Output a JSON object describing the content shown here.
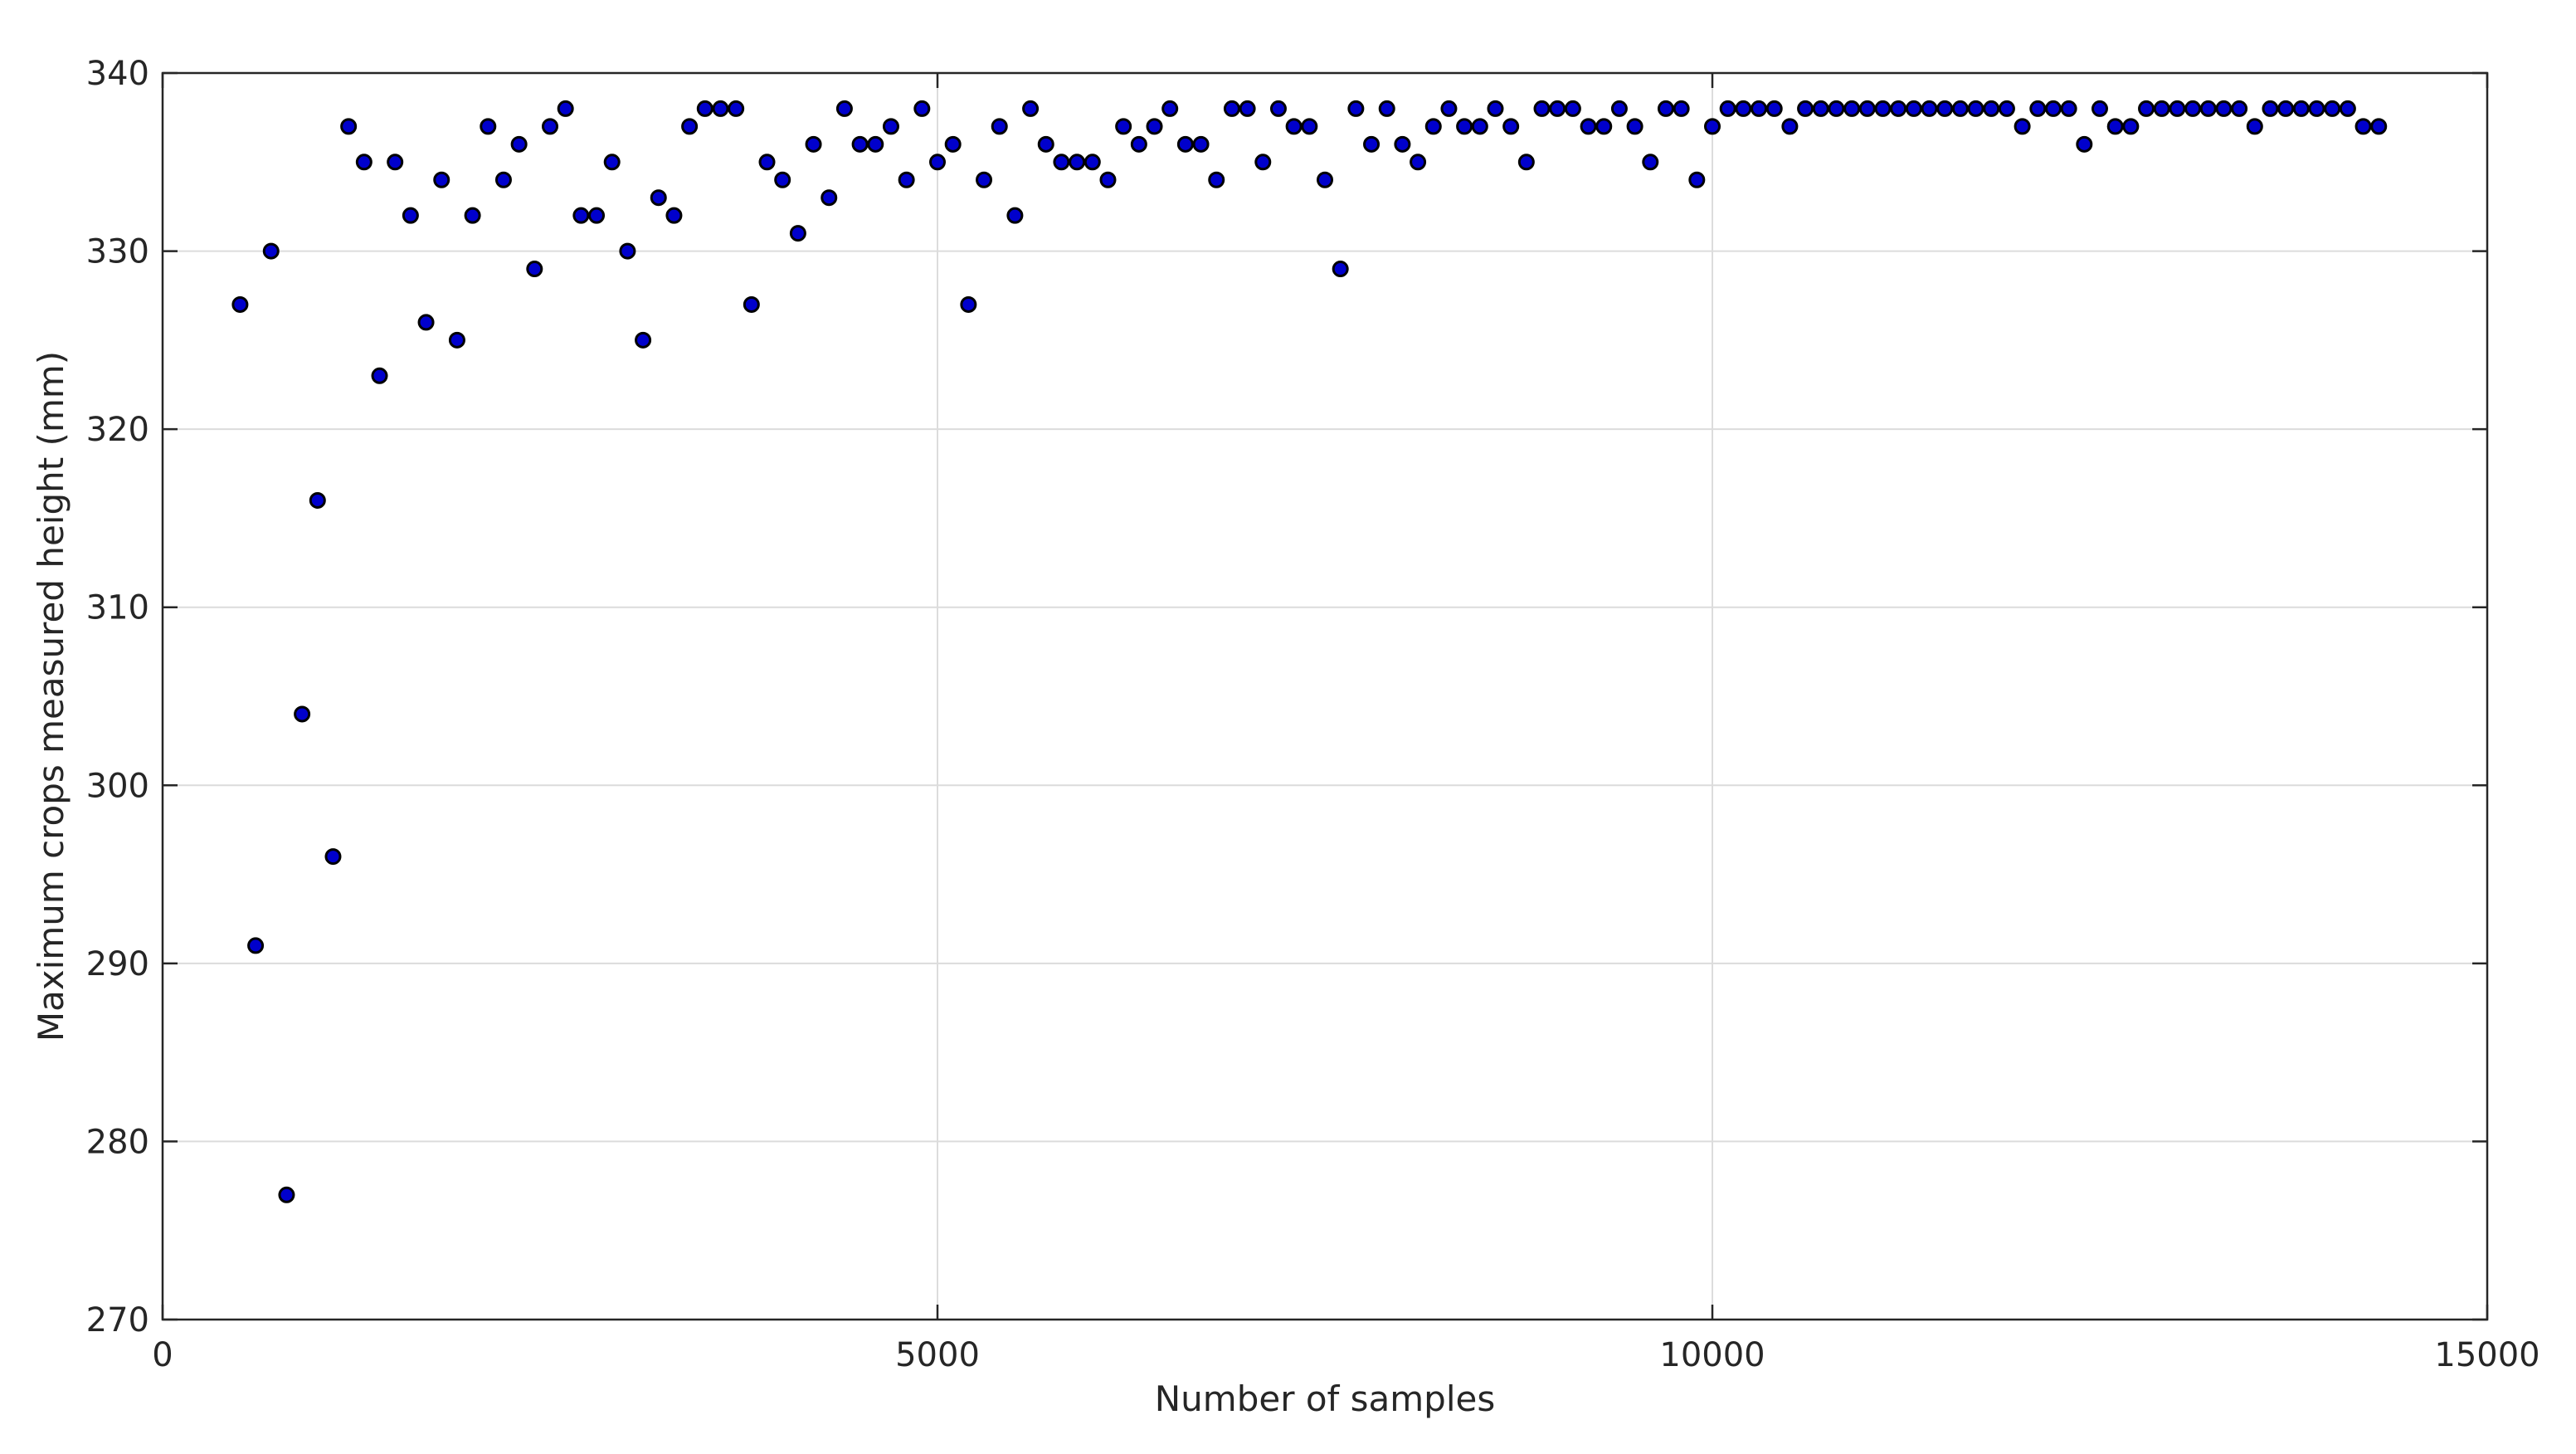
{
  "chart_data": {
    "type": "scatter",
    "title": "",
    "xlabel": "Number of samples",
    "ylabel": "Maximum crops measured height (mm)",
    "xlim": [
      0,
      15000
    ],
    "ylim": [
      270,
      340
    ],
    "xticks": [
      0,
      5000,
      10000,
      15000
    ],
    "xtick_labels": [
      "0",
      "5000",
      "10000",
      "15000"
    ],
    "yticks": [
      270,
      280,
      290,
      300,
      310,
      320,
      330,
      340
    ],
    "ytick_labels": [
      "270",
      "280",
      "290",
      "300",
      "310",
      "320",
      "330",
      "340"
    ],
    "grid": true,
    "marker_color": "#0000cc",
    "marker_edge_color": "#000000",
    "series": [
      {
        "x": [
          500,
          600,
          700,
          800,
          900,
          1000,
          1100,
          1200,
          1300,
          1400,
          1500,
          1600,
          1700,
          1800,
          1900,
          2000,
          2100,
          2200,
          2300,
          2400,
          2500,
          2600,
          2700,
          2800,
          2900,
          3000,
          3100,
          3200,
          3300,
          3400,
          3500,
          3600,
          3700,
          3800,
          3900,
          4000,
          4100,
          4200,
          4300,
          4400,
          4500,
          4600,
          4700,
          4800,
          4900,
          5000,
          5100,
          5200,
          5300,
          5400,
          5500,
          5600,
          5700,
          5800,
          5900,
          6000,
          6100,
          6200,
          6300,
          6400,
          6500,
          6600,
          6700,
          6800,
          6900,
          7000,
          7100,
          7200,
          7300,
          7400,
          7500,
          7600,
          7700,
          7800,
          7900,
          8000,
          8100,
          8200,
          8300,
          8400,
          8500,
          8600,
          8700,
          8800,
          8900,
          9000,
          9100,
          9200,
          9300,
          9400,
          9500,
          9600,
          9700,
          9800,
          9900,
          10000,
          10100,
          10200,
          10300,
          10400,
          10500,
          10600,
          10700,
          10800,
          10900,
          11000,
          11100,
          11200,
          11300,
          11400,
          11500,
          11600,
          11700,
          11800,
          11900,
          12000,
          12100,
          12200,
          12300,
          12400,
          12500,
          12600,
          12700,
          12800,
          12900,
          13000,
          13100,
          13200,
          13300,
          13400,
          13500,
          13600,
          13700,
          13800,
          13900,
          14000,
          14100,
          14200,
          14300
        ],
        "y": [
          327,
          291,
          330,
          277,
          304,
          316,
          296,
          337,
          335,
          323,
          335,
          332,
          326,
          334,
          325,
          332,
          337,
          334,
          336,
          329,
          337,
          338,
          332,
          332,
          335,
          330,
          325,
          333,
          332,
          337,
          338,
          338,
          338,
          327,
          335,
          334,
          331,
          336,
          333,
          338,
          336,
          336,
          337,
          334,
          338,
          335,
          336,
          327,
          334,
          337,
          332,
          338,
          336,
          335,
          335,
          335,
          334,
          337,
          336,
          337,
          338,
          336,
          336,
          334,
          338,
          338,
          335,
          338,
          337,
          337,
          334,
          329,
          338,
          336,
          338,
          336,
          335,
          337,
          338,
          337,
          337,
          338,
          337,
          335,
          338,
          338,
          338,
          337,
          337,
          338,
          337,
          335,
          338,
          338,
          334,
          337,
          338,
          338,
          338,
          338,
          337,
          338,
          338,
          338,
          338,
          338,
          338,
          338,
          338,
          338,
          338,
          338,
          338,
          338,
          338,
          337,
          338,
          338,
          338,
          336,
          338,
          337,
          337,
          338,
          338,
          338,
          338,
          338,
          338,
          338,
          337,
          338,
          338,
          338,
          338,
          338,
          338,
          337,
          337
        ]
      }
    ]
  }
}
